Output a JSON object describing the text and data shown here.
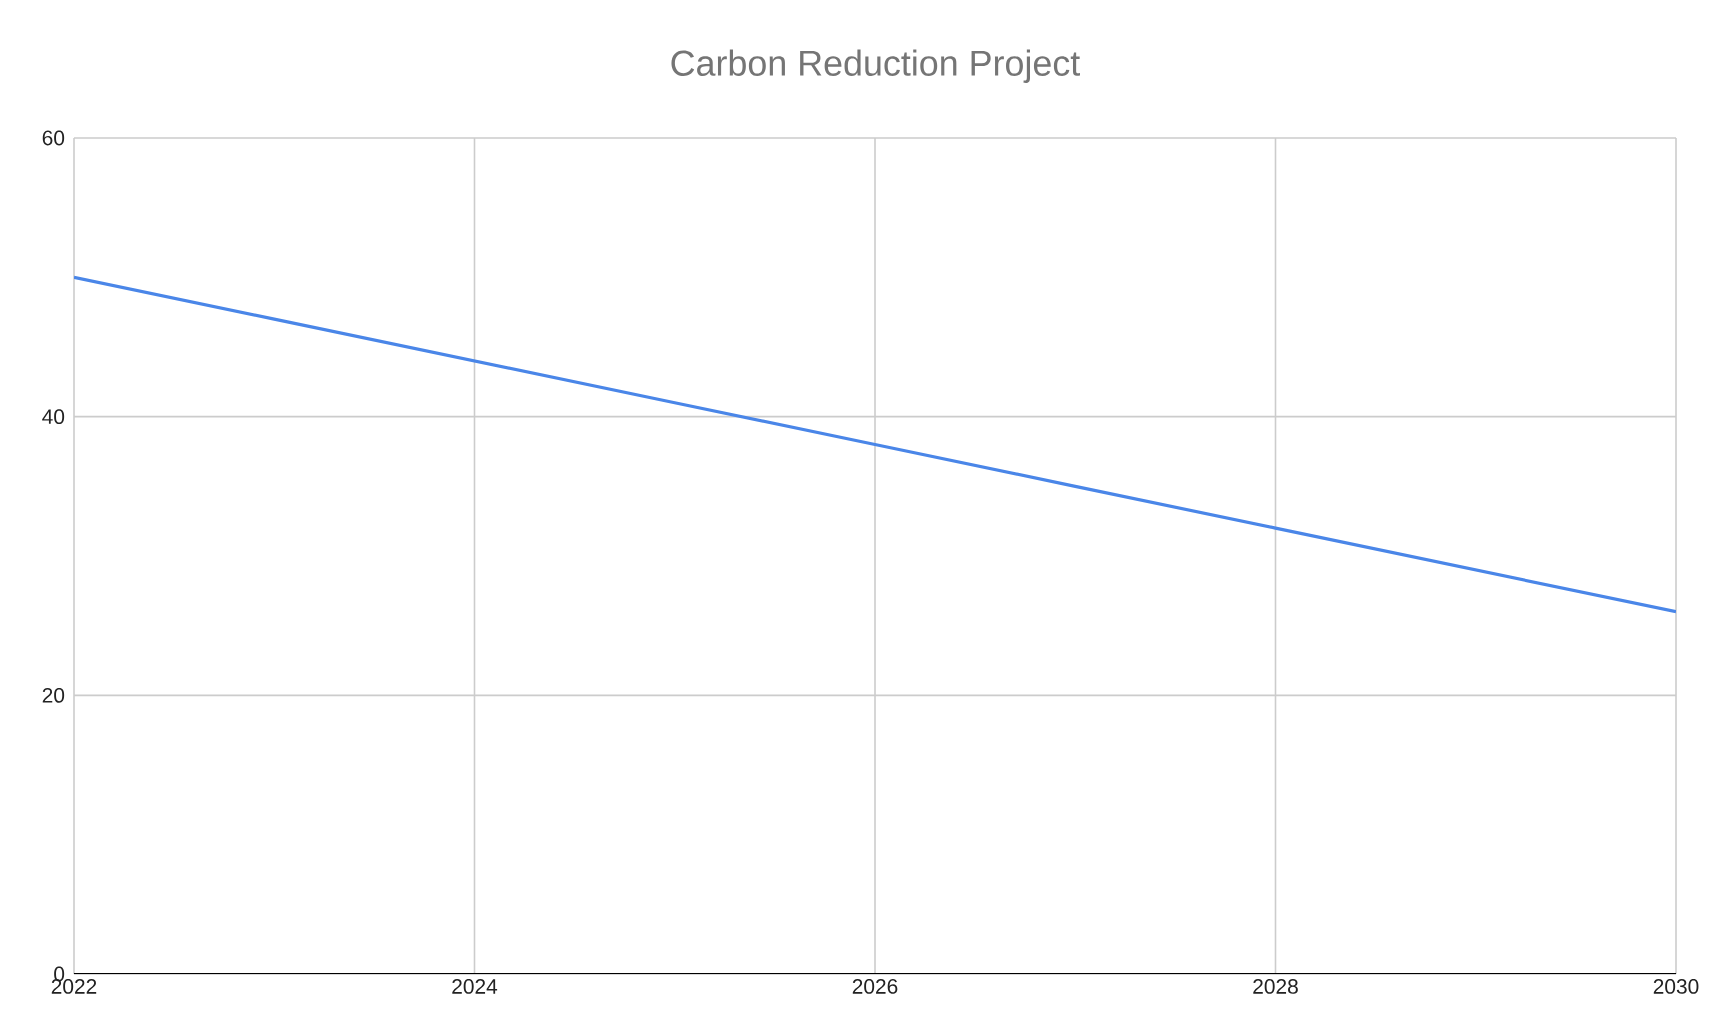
{
  "chart_data": {
    "type": "line",
    "title": "Carbon Reduction Project",
    "x": [
      2022,
      2023,
      2024,
      2025,
      2026,
      2027,
      2028,
      2029,
      2030
    ],
    "series": [
      {
        "color": "#4a86e8",
        "values": [
          50,
          47,
          44,
          41,
          38,
          35,
          32,
          29,
          26
        ]
      }
    ],
    "xlim": [
      2022,
      2030
    ],
    "xticks": [
      2022,
      2024,
      2026,
      2028,
      2030
    ],
    "ylim": [
      0,
      60
    ],
    "yticks": [
      0,
      20,
      40,
      60
    ],
    "grid": true,
    "marker": "none",
    "line_style": "solid"
  }
}
